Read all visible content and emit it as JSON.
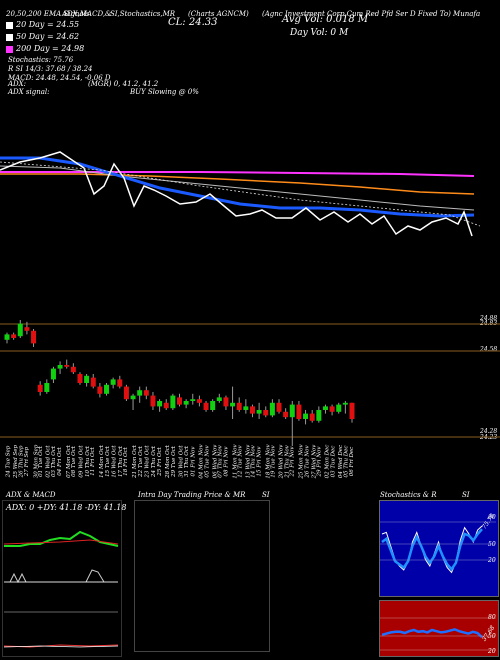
{
  "header": {
    "row1": [
      "20,50,200 EMA Signals",
      "ADX,MACD,&",
      "SI,Stochastics,MR",
      "(Charts AGNCM)",
      "(Agnc Investment Corp Cum Red Pfd Ser D Fixed To) Munafa"
    ],
    "cl": "CL: 24.33",
    "avg_vol": "Avg Vol: 0.018  M",
    "day_vol": "Day Vol: 0   M",
    "ema_lines": [
      {
        "label": "20 Day = 24.55",
        "color": "#ffffff"
      },
      {
        "label": "50 Day = 24.62",
        "color": "#ffffff"
      },
      {
        "label": "200 Day = 24.98",
        "color": "#ff33ff"
      }
    ],
    "stoch_lines": [
      "Stochastics: 75.76",
      "R          SI 14/3: 37.68 / 38.24",
      "MACD: 24.48, 24.54, -0.06  D"
    ],
    "adx_lines": [
      "ADX:",
      "ADX  signal:"
    ],
    "mr_text": "(MGR) 0, 41.2, 41.2",
    "buy_text": "BUY Slowing @ 0%"
  },
  "price_labels": {
    "p1": "24.88",
    "p2": "24.83",
    "p3": "24.58",
    "p4": "24.28",
    "p5": "24.23"
  },
  "dates": [
    "24 Tue Sep",
    "25 Wed Sep",
    "26 Thu Sep",
    "27 Fri Sep",
    "30 Mon Sep",
    "01 Tue Oct",
    "02 Wed Oct",
    "03 Thu Oct",
    "04 Fri Oct",
    "07 Mon Oct",
    "08 Tue Oct",
    "09 Wed Oct",
    "10 Thu Oct",
    "11 Fri Oct",
    "14 Mon Oct",
    "15 Tue Oct",
    "16 Wed Oct",
    "17 Thu Oct",
    "18 Fri Oct",
    "21 Mon Oct",
    "22 Tue Oct",
    "23 Wed Oct",
    "24 Thu Oct",
    "25 Fri Oct",
    "28 Mon Oct",
    "29 Tue Oct",
    "30 Wed Oct",
    "31 Thu Oct",
    "01 Fri Nov",
    "04 Mon Nov",
    "05 Tue Nov",
    "06 Wed Nov",
    "07 Thu Nov",
    "08 Fri Nov",
    "11 Mon Nov",
    "12 Tue Nov",
    "13 Wed Nov",
    "14 Thu Nov",
    "15 Fri Nov",
    "18 Mon Nov",
    "19 Tue Nov",
    "20 Wed Nov",
    "21 Thu Nov",
    "22 Fri Nov",
    "25 Mon Nov",
    "26 Tue Nov",
    "27 Wed Nov",
    "29 Fri Nov",
    "02 Mon Dec",
    "03 Tue Dec",
    "04 Wed Dec",
    "05 Thu Dec",
    "06 Fri Dec"
  ],
  "panels": {
    "adx_title": "ADX  & MACD",
    "adx_values": "ADX: 0   +DY: 41.18  -DY: 41.18",
    "intra_title": "Intra  Day Trading Price  & MR",
    "intra_si": "SI",
    "stoch_title": "Stochastics & R",
    "stoch_si": "SI",
    "stoch_ticks": [
      "80",
      "50",
      "20"
    ],
    "stoch_val": "75.76",
    "rsi_ticks": [
      "80",
      "50",
      "20"
    ],
    "rsi_val": "37.68"
  },
  "chart_data": [
    {
      "type": "candlestick",
      "categories": [
        "24 Tue Sep",
        "25 Wed Sep",
        "26 Thu Sep",
        "27 Fri Sep",
        "30 Mon Sep",
        "01 Tue Oct",
        "02 Wed Oct",
        "03 Thu Oct",
        "04 Fri Oct",
        "07 Mon Oct",
        "08 Tue Oct",
        "09 Wed Oct",
        "10 Thu Oct",
        "11 Fri Oct",
        "14 Mon Oct",
        "15 Tue Oct",
        "16 Wed Oct",
        "17 Thu Oct",
        "18 Fri Oct",
        "21 Mon Oct",
        "22 Tue Oct",
        "23 Wed Oct",
        "24 Thu Oct",
        "25 Fri Oct",
        "28 Mon Oct",
        "29 Tue Oct",
        "30 Wed Oct",
        "31 Thu Oct",
        "01 Fri Nov",
        "04 Mon Nov",
        "05 Tue Nov",
        "06 Wed Nov",
        "07 Thu Nov",
        "08 Fri Nov",
        "11 Mon Nov",
        "12 Tue Nov",
        "13 Wed Nov",
        "14 Thu Nov",
        "15 Fri Nov",
        "18 Mon Nov",
        "19 Tue Nov",
        "20 Wed Nov",
        "21 Thu Nov",
        "22 Fri Nov",
        "25 Mon Nov",
        "26 Tue Nov",
        "27 Wed Nov",
        "29 Fri Nov",
        "02 Mon Dec",
        "03 Tue Dec",
        "04 Wed Dec",
        "05 Thu Dec",
        "06 Fri Dec"
      ],
      "ohlc": [
        [
          24.77,
          24.81,
          24.75,
          24.8
        ],
        [
          24.8,
          24.81,
          24.77,
          24.78
        ],
        [
          24.79,
          24.88,
          24.78,
          24.86
        ],
        [
          24.84,
          24.87,
          24.8,
          24.82
        ],
        [
          24.82,
          24.83,
          24.73,
          24.75
        ],
        [
          24.52,
          24.54,
          24.46,
          24.48
        ],
        [
          24.48,
          24.55,
          24.47,
          24.53
        ],
        [
          24.55,
          24.62,
          24.53,
          24.61
        ],
        [
          24.61,
          24.65,
          24.58,
          24.63
        ],
        [
          24.63,
          24.66,
          24.61,
          24.62
        ],
        [
          24.62,
          24.64,
          24.58,
          24.59
        ],
        [
          24.58,
          24.59,
          24.52,
          24.53
        ],
        [
          24.53,
          24.58,
          24.51,
          24.57
        ],
        [
          24.56,
          24.58,
          24.5,
          24.51
        ],
        [
          24.51,
          24.53,
          24.45,
          24.47
        ],
        [
          24.47,
          24.53,
          24.46,
          24.52
        ],
        [
          24.52,
          24.56,
          24.5,
          24.55
        ],
        [
          24.55,
          24.57,
          24.5,
          24.51
        ],
        [
          24.51,
          24.52,
          24.43,
          24.44
        ],
        [
          24.44,
          24.47,
          24.38,
          24.46
        ],
        [
          24.46,
          24.51,
          24.42,
          24.49
        ],
        [
          24.49,
          24.51,
          24.44,
          24.46
        ],
        [
          24.46,
          24.48,
          24.38,
          24.4
        ],
        [
          24.4,
          24.44,
          24.37,
          24.43
        ],
        [
          24.42,
          24.44,
          24.38,
          24.39
        ],
        [
          24.39,
          24.47,
          24.38,
          24.46
        ],
        [
          24.45,
          24.47,
          24.4,
          24.41
        ],
        [
          24.41,
          24.44,
          24.39,
          24.43
        ],
        [
          24.43,
          24.47,
          24.41,
          24.44
        ],
        [
          24.44,
          24.46,
          24.4,
          24.42
        ],
        [
          24.42,
          24.43,
          24.37,
          24.38
        ],
        [
          24.38,
          24.44,
          24.37,
          24.43
        ],
        [
          24.43,
          24.47,
          24.42,
          24.45
        ],
        [
          24.45,
          24.46,
          24.38,
          24.4
        ],
        [
          24.4,
          24.51,
          24.33,
          24.42
        ],
        [
          24.42,
          24.45,
          24.37,
          24.38
        ],
        [
          24.38,
          24.44,
          24.36,
          24.4
        ],
        [
          24.4,
          24.41,
          24.34,
          24.36
        ],
        [
          24.36,
          24.42,
          24.33,
          24.38
        ],
        [
          24.38,
          24.4,
          24.34,
          24.35
        ],
        [
          24.35,
          24.44,
          24.34,
          24.42
        ],
        [
          24.42,
          24.44,
          24.36,
          24.37
        ],
        [
          24.37,
          24.39,
          24.33,
          24.34
        ],
        [
          24.34,
          24.43,
          24.18,
          24.41
        ],
        [
          24.41,
          24.43,
          24.32,
          24.33
        ],
        [
          24.33,
          24.38,
          24.3,
          24.36
        ],
        [
          24.36,
          24.38,
          24.31,
          24.32
        ],
        [
          24.32,
          24.4,
          24.31,
          24.38
        ],
        [
          24.38,
          24.41,
          24.36,
          24.4
        ],
        [
          24.4,
          24.41,
          24.35,
          24.37
        ],
        [
          24.37,
          24.42,
          24.36,
          24.41
        ],
        [
          24.41,
          24.43,
          24.36,
          24.42
        ],
        [
          24.42,
          24.42,
          24.31,
          24.33
        ]
      ],
      "ema20": 24.55,
      "ema50": 24.62,
      "ema200": 24.98
    },
    {
      "type": "line",
      "title": "Stochastics & R",
      "series": [
        {
          "name": "Stochastics",
          "values": [
            70,
            72,
            55,
            38,
            30,
            25,
            35,
            60,
            72,
            55,
            38,
            30,
            45,
            60,
            40,
            28,
            22,
            35,
            62,
            78,
            70,
            60,
            75,
            80
          ]
        },
        {
          "name": "SI 14/3",
          "values": [
            60,
            64,
            50,
            36,
            32,
            28,
            36,
            55,
            66,
            55,
            42,
            34,
            42,
            55,
            42,
            32,
            26,
            34,
            55,
            70,
            68,
            62,
            70,
            76
          ]
        }
      ]
    },
    {
      "type": "line",
      "title": "SI",
      "series": [
        {
          "name": "SI",
          "values": [
            42,
            44,
            46,
            47,
            47,
            45,
            48,
            50,
            47,
            48,
            46,
            50,
            48,
            46,
            47,
            49,
            51,
            48,
            46,
            44,
            47,
            45,
            38
          ]
        }
      ]
    }
  ]
}
